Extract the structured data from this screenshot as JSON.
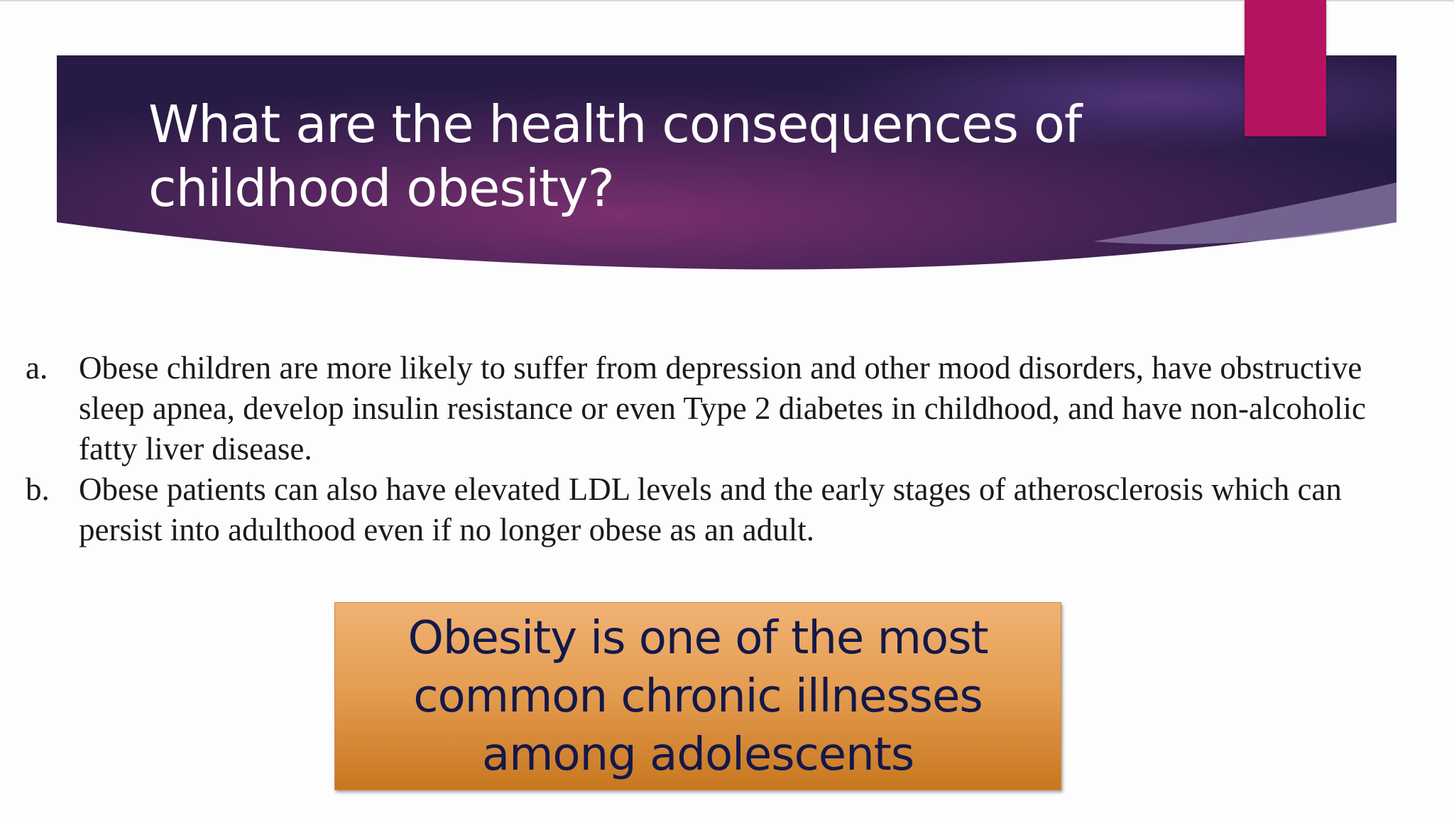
{
  "title_lines": [
    "What are the health consequences of",
    "childhood obesity?"
  ],
  "items": [
    {
      "marker": "a.",
      "text": "Obese children are more likely to suffer from depression and other mood disorders, have obstructive sleep apnea, develop insulin resistance or even Type 2 diabetes in childhood, and have non-alcoholic fatty liver disease."
    },
    {
      "marker": "b.",
      "text": "Obese patients can also have elevated LDL levels and the early stages of atherosclerosis which can persist into adulthood even if no longer obese as an adult."
    }
  ],
  "callout_lines": [
    "Obesity is one of the most",
    "common chronic illnesses",
    "among adolescents"
  ]
}
